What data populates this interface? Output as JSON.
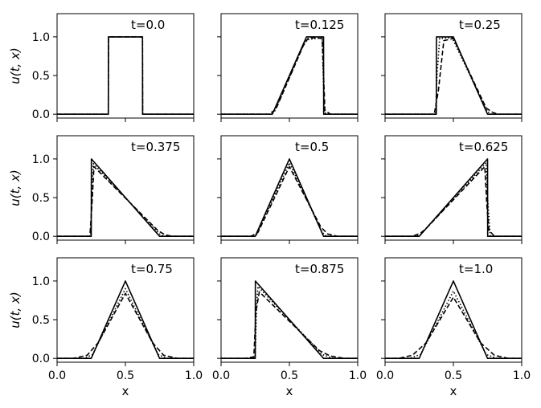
{
  "chart_data": {
    "type": "line",
    "layout": {
      "rows": 3,
      "cols": 3
    },
    "xlim": [
      0.0,
      1.0
    ],
    "ylim": [
      -0.05,
      1.3
    ],
    "xticks": [
      0.0,
      0.5,
      1.0
    ],
    "xtick_labels": [
      "0.0",
      "0.5",
      "1.0"
    ],
    "yticks": [
      0.0,
      0.5,
      1.0
    ],
    "ytick_labels": [
      "0.0",
      "0.5",
      "1.0"
    ],
    "xlabel": "x",
    "ylabel": "u(t, x)",
    "grid": false,
    "line_colors": {
      "solid": "#000000",
      "dashed": "#000000",
      "dotted": "#000000"
    },
    "panels": [
      {
        "annotation": "t=0.0",
        "series": [
          {
            "style": "solid",
            "x": [
              0,
              0.375,
              0.376,
              0.625,
              0.626,
              1
            ],
            "y": [
              0,
              0,
              1,
              1,
              0,
              0
            ]
          },
          {
            "style": "dashed",
            "x": [
              0,
              0.375,
              0.376,
              0.625,
              0.626,
              1
            ],
            "y": [
              0,
              0,
              1,
              1,
              0,
              0
            ]
          },
          {
            "style": "dotted",
            "x": [
              0,
              0.375,
              0.376,
              0.625,
              0.626,
              1
            ],
            "y": [
              0,
              0,
              1,
              1,
              0,
              0
            ]
          }
        ]
      },
      {
        "annotation": "t=0.125",
        "series": [
          {
            "style": "solid",
            "x": [
              0,
              0.375,
              0.625,
              0.75,
              0.751,
              1
            ],
            "y": [
              0,
              0,
              1,
              1,
              0,
              0
            ]
          },
          {
            "style": "dashed",
            "x": [
              0,
              0.35,
              0.4,
              0.6,
              0.64,
              0.74,
              0.76,
              0.8,
              1
            ],
            "y": [
              0,
              0,
              0.06,
              0.88,
              0.99,
              0.98,
              0.05,
              0,
              0
            ]
          },
          {
            "style": "dotted",
            "x": [
              0,
              0.37,
              0.39,
              0.62,
              0.74,
              0.755,
              0.78,
              1
            ],
            "y": [
              0,
              0,
              0.03,
              0.96,
              0.99,
              0.02,
              0,
              0
            ]
          }
        ]
      },
      {
        "annotation": "t=0.25",
        "series": [
          {
            "style": "solid",
            "x": [
              0,
              0.375,
              0.376,
              0.5,
              0.75,
              1
            ],
            "y": [
              0,
              0,
              1,
              1,
              0,
              0
            ]
          },
          {
            "style": "dashed",
            "x": [
              0,
              0.36,
              0.39,
              0.43,
              0.5,
              0.74,
              0.79,
              0.83,
              1
            ],
            "y": [
              0,
              0,
              0.3,
              0.95,
              0.98,
              0.08,
              0.02,
              0,
              0
            ]
          },
          {
            "style": "dotted",
            "x": [
              0,
              0.37,
              0.38,
              0.4,
              0.49,
              0.75,
              0.78,
              1
            ],
            "y": [
              0,
              0,
              0.5,
              0.98,
              0.99,
              0.03,
              0,
              0
            ]
          }
        ]
      },
      {
        "annotation": "t=0.375",
        "series": [
          {
            "style": "solid",
            "x": [
              0,
              0.25,
              0.251,
              0.75,
              1
            ],
            "y": [
              0,
              0,
              1,
              0,
              0
            ]
          },
          {
            "style": "dashed",
            "x": [
              0,
              0.24,
              0.255,
              0.27,
              0.74,
              0.79,
              0.84,
              1
            ],
            "y": [
              0,
              0,
              0.4,
              0.9,
              0.07,
              0.02,
              0,
              0
            ]
          },
          {
            "style": "dotted",
            "x": [
              0,
              0.245,
              0.255,
              0.265,
              0.75,
              0.78,
              1
            ],
            "y": [
              0,
              0,
              0.6,
              0.94,
              0.03,
              0,
              0
            ]
          }
        ]
      },
      {
        "annotation": "t=0.5",
        "series": [
          {
            "style": "solid",
            "x": [
              0,
              0.25,
              0.5,
              0.75,
              1
            ],
            "y": [
              0,
              0,
              1,
              0,
              0
            ]
          },
          {
            "style": "dashed",
            "x": [
              0,
              0.22,
              0.27,
              0.5,
              0.73,
              0.78,
              0.85,
              1
            ],
            "y": [
              0,
              0,
              0.05,
              0.9,
              0.12,
              0.03,
              0,
              0
            ]
          },
          {
            "style": "dotted",
            "x": [
              0,
              0.24,
              0.26,
              0.5,
              0.74,
              0.77,
              1
            ],
            "y": [
              0,
              0,
              0.02,
              0.95,
              0.05,
              0,
              0
            ]
          }
        ]
      },
      {
        "annotation": "t=0.625",
        "series": [
          {
            "style": "solid",
            "x": [
              0,
              0.25,
              0.75,
              0.751,
              1
            ],
            "y": [
              0,
              0,
              1,
              0,
              0
            ]
          },
          {
            "style": "dashed",
            "x": [
              0,
              0.2,
              0.26,
              0.3,
              0.73,
              0.745,
              0.76,
              0.8,
              1
            ],
            "y": [
              0,
              0,
              0.04,
              0.1,
              0.9,
              0.4,
              0.08,
              0,
              0
            ]
          },
          {
            "style": "dotted",
            "x": [
              0,
              0.23,
              0.26,
              0.74,
              0.75,
              0.77,
              1
            ],
            "y": [
              0,
              0,
              0.02,
              0.95,
              0.5,
              0,
              0
            ]
          }
        ]
      },
      {
        "annotation": "t=0.75",
        "series": [
          {
            "style": "solid",
            "x": [
              0,
              0.25,
              0.5,
              0.75,
              1
            ],
            "y": [
              0,
              0,
              1,
              0,
              0
            ]
          },
          {
            "style": "dashed",
            "x": [
              0,
              0.12,
              0.22,
              0.3,
              0.5,
              0.7,
              0.78,
              0.88,
              1
            ],
            "y": [
              0,
              0,
              0.04,
              0.2,
              0.84,
              0.2,
              0.04,
              0,
              0
            ]
          },
          {
            "style": "dotted",
            "x": [
              0,
              0.2,
              0.26,
              0.5,
              0.74,
              0.8,
              1
            ],
            "y": [
              0,
              0,
              0.05,
              0.9,
              0.05,
              0,
              0
            ]
          }
        ]
      },
      {
        "annotation": "t=0.875",
        "series": [
          {
            "style": "solid",
            "x": [
              0,
              0.25,
              0.251,
              0.75,
              1
            ],
            "y": [
              0,
              0,
              1,
              0,
              0
            ]
          },
          {
            "style": "dashed",
            "x": [
              0,
              0.18,
              0.24,
              0.255,
              0.28,
              0.72,
              0.8,
              0.9,
              1
            ],
            "y": [
              0,
              0,
              0.02,
              0.6,
              0.86,
              0.1,
              0.03,
              0,
              0
            ]
          },
          {
            "style": "dotted",
            "x": [
              0,
              0.22,
              0.25,
              0.26,
              0.27,
              0.74,
              0.82,
              1
            ],
            "y": [
              0,
              0,
              0.02,
              0.7,
              0.93,
              0.05,
              0,
              0
            ]
          }
        ]
      },
      {
        "annotation": "t=1.0",
        "series": [
          {
            "style": "solid",
            "x": [
              0,
              0.25,
              0.5,
              0.75,
              1
            ],
            "y": [
              0,
              0,
              1,
              0,
              0
            ]
          },
          {
            "style": "dashed",
            "x": [
              0,
              0.1,
              0.2,
              0.3,
              0.5,
              0.7,
              0.8,
              0.9,
              1
            ],
            "y": [
              0,
              0,
              0.04,
              0.2,
              0.79,
              0.2,
              0.04,
              0,
              0
            ]
          },
          {
            "style": "dotted",
            "x": [
              0,
              0.18,
              0.26,
              0.5,
              0.74,
              0.82,
              1
            ],
            "y": [
              0,
              0,
              0.05,
              0.87,
              0.05,
              0,
              0
            ]
          }
        ]
      }
    ]
  }
}
